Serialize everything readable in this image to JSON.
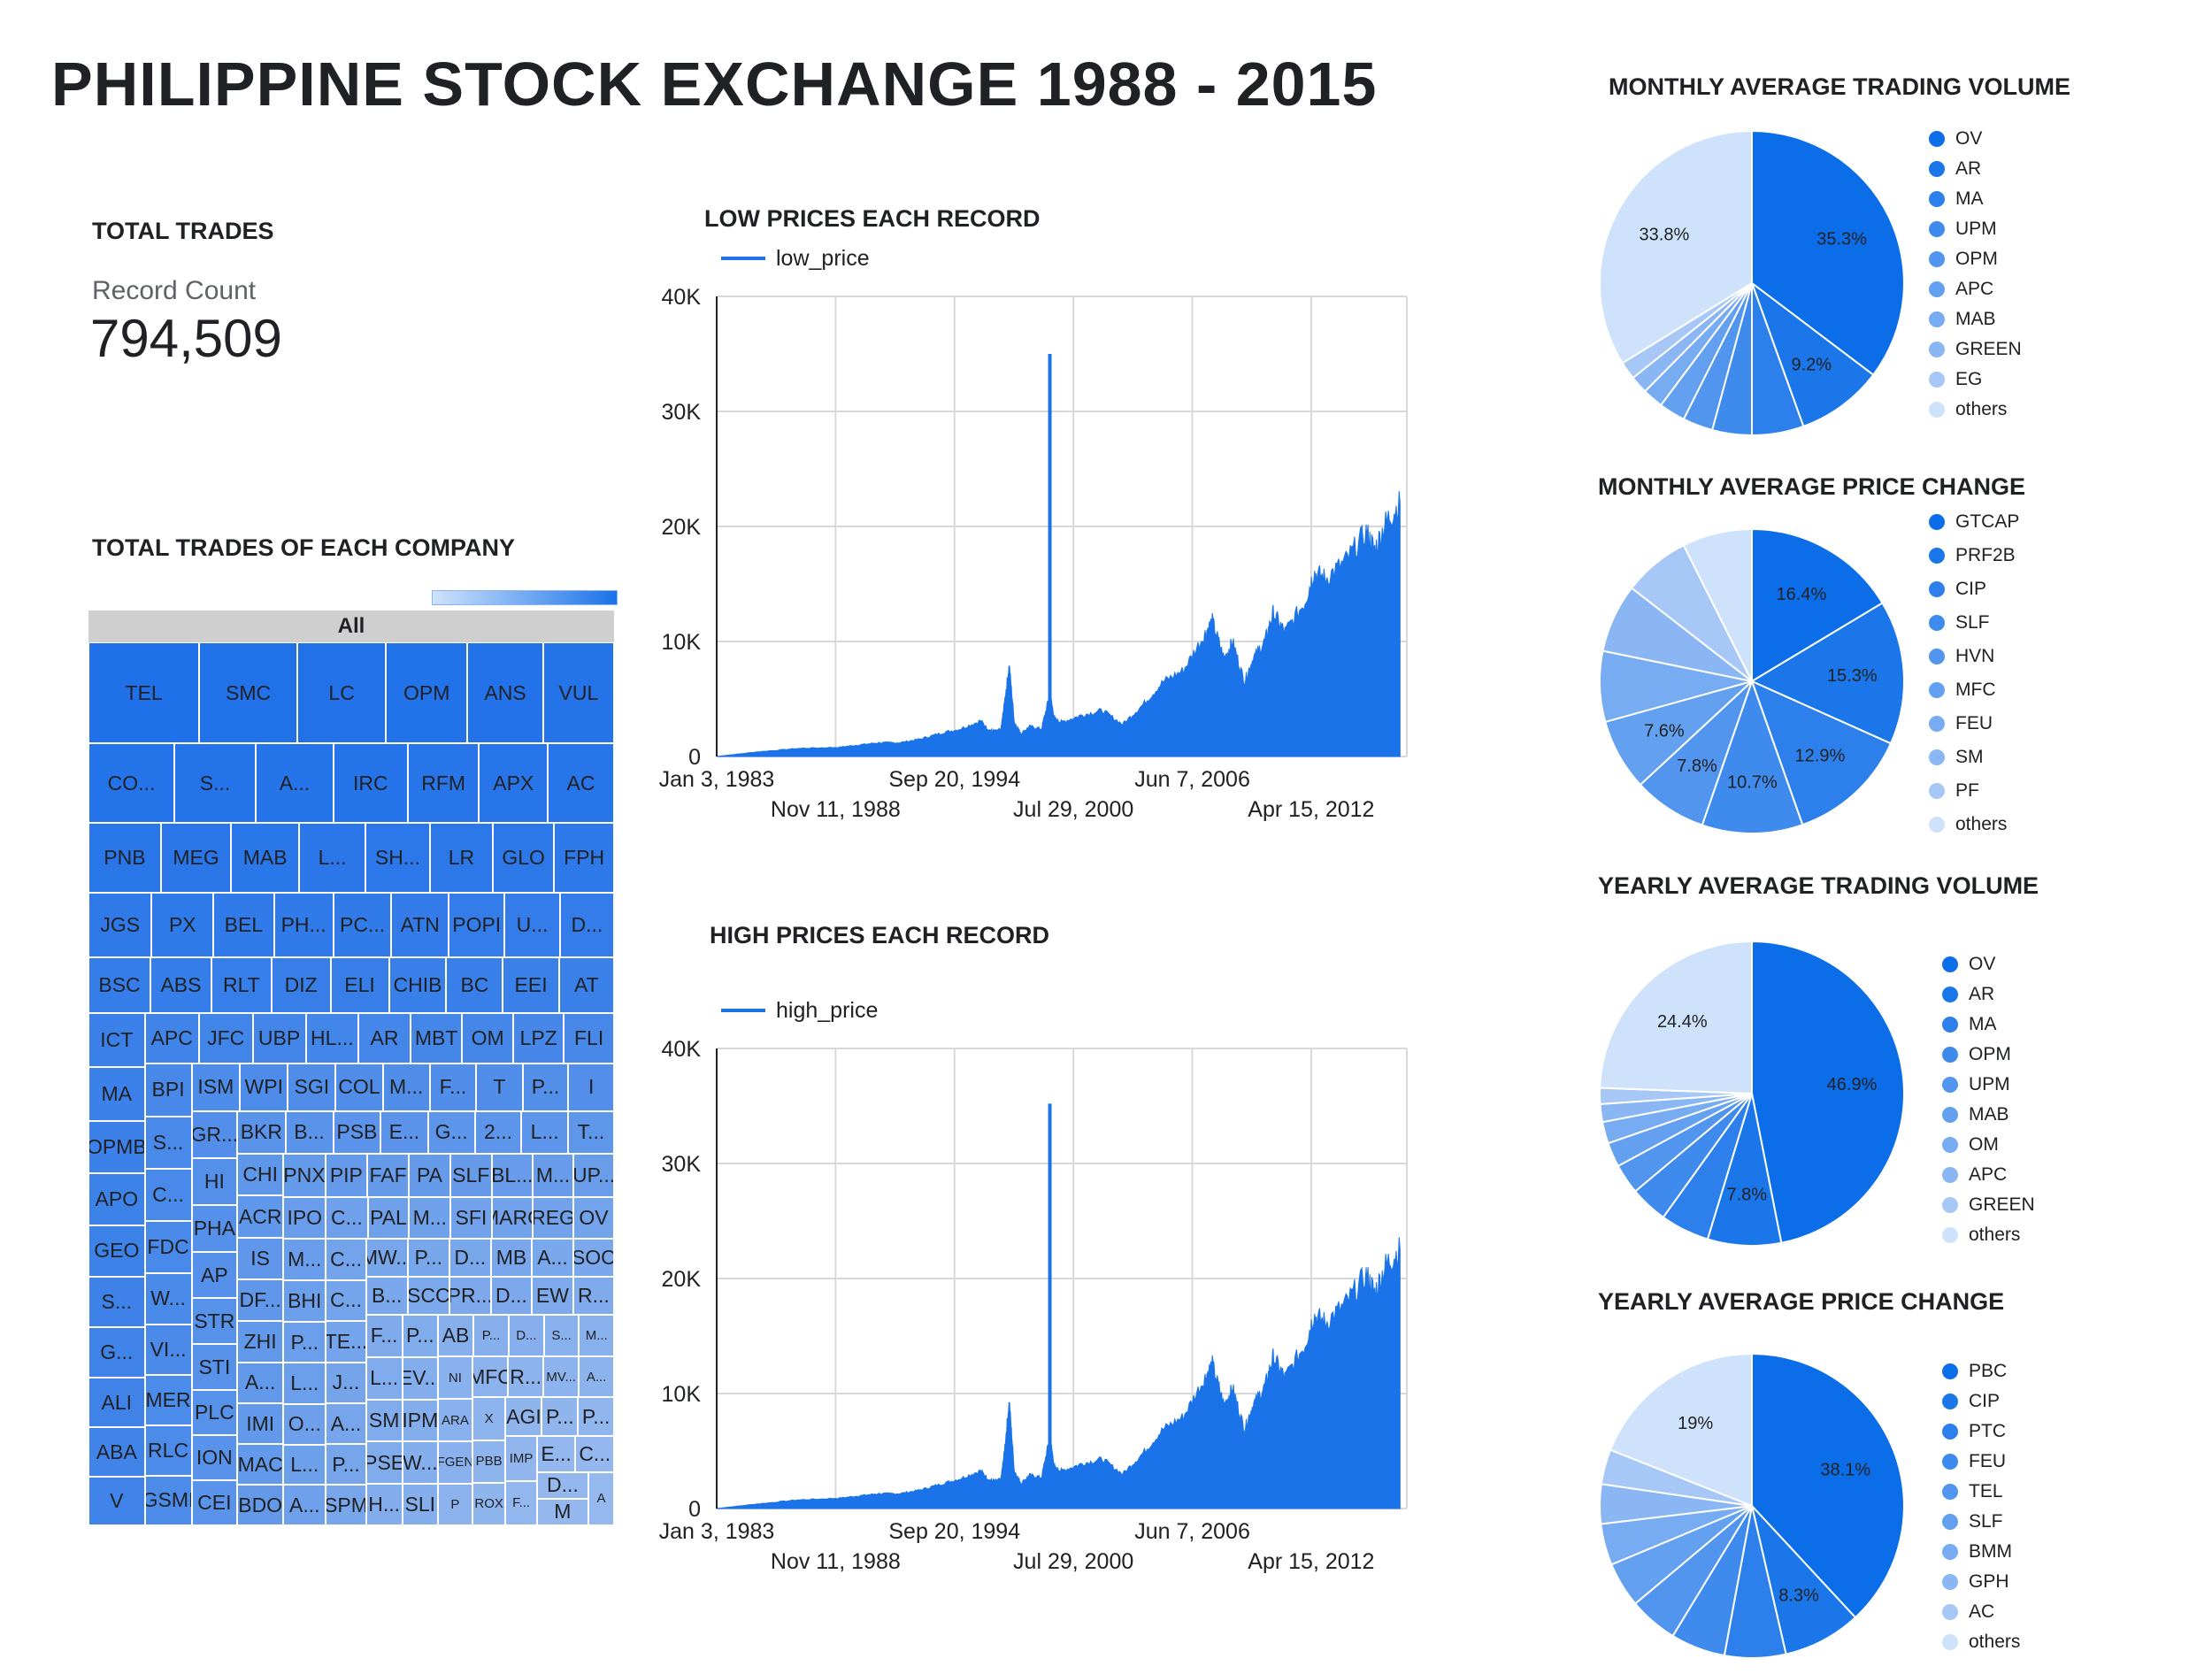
{
  "page": {
    "title": "PHILIPPINE STOCK EXCHANGE 1988 - 2015"
  },
  "kpi": {
    "heading": "TOTAL TRADES",
    "label": "Record Count",
    "value": "794,509"
  },
  "treemap": {
    "heading": "TOTAL TRADES OF EACH COMPANY",
    "root_label": "All",
    "cells": [
      "TEL",
      "SMC",
      "LC",
      "OPM",
      "ANS",
      "VUL",
      "CO...",
      "S...",
      "A...",
      "IRC",
      "RFM",
      "APX",
      "AC",
      "PNB",
      "MEG",
      "MAB",
      "L...",
      "SH...",
      "LR",
      "GLO",
      "FPH",
      "JGS",
      "PX",
      "BEL",
      "PH...",
      "PC...",
      "ATN",
      "POPI",
      "U...",
      "D...",
      "BSC",
      "ABS",
      "RLT",
      "DIZ",
      "ELI",
      "CHIB",
      "BC",
      "EEI",
      "AT",
      "ICT",
      "MA",
      "OPMB",
      "APO",
      "GEO",
      "S...",
      "G...",
      "ALI",
      "ABA",
      "V",
      "APC",
      "JFC",
      "UBP",
      "HL...",
      "AR",
      "MBT",
      "OM",
      "LPZ",
      "FLI",
      "BPI",
      "S...",
      "C...",
      "FDC",
      "W...",
      "VI...",
      "MER",
      "RLC",
      "GSMI",
      "ISM",
      "WPI",
      "SGI",
      "COL",
      "M...",
      "F...",
      "T",
      "P...",
      "I",
      "GR...",
      "HI",
      "PHA",
      "AP",
      "STR",
      "STI",
      "PLC",
      "ION",
      "CEI",
      "BKR",
      "B...",
      "PSB",
      "E...",
      "G...",
      "2...",
      "L...",
      "T...",
      "CHI",
      "ACR",
      "IS",
      "DF...",
      "ZHI",
      "A...",
      "IMI",
      "MAC",
      "BDO",
      "PNX",
      "PIP",
      "FAF",
      "PA",
      "SLF",
      "BL...",
      "M...",
      "UP...",
      "IPO",
      "M...",
      "BHI",
      "P...",
      "L...",
      "O...",
      "L...",
      "A...",
      "C...",
      "PAL",
      "M...",
      "SFI",
      "MARC",
      "REG",
      "OV",
      "C...",
      "C...",
      "TE...",
      "J...",
      "A...",
      "P...",
      "SPM",
      "MW...",
      "P...",
      "D...",
      "MB",
      "A...",
      "SOC",
      "B...",
      "SCC",
      "PR...",
      "D...",
      "EW",
      "R...",
      "F...",
      "L...",
      "SM",
      "PSE",
      "H...",
      "P...",
      "EV...",
      "IPM",
      "W...",
      "SLI",
      "AB",
      "P...",
      "D...",
      "S...",
      "M...",
      "NI",
      "ARA",
      "FGEN",
      "P",
      "MFC",
      "R...",
      "MV...",
      "A...",
      "X",
      "PBB",
      "ROX",
      "AGI",
      "P...",
      "P...",
      "IMP",
      "F...",
      "E...",
      "C...",
      "D...",
      "M",
      "A"
    ]
  },
  "low_chart": {
    "heading": "LOW PRICES EACH RECORD",
    "legend": "low_price"
  },
  "high_chart": {
    "heading": "HIGH PRICES EACH RECORD",
    "legend": "high_price"
  },
  "pies": [
    {
      "heading": "MONTHLY AVERAGE TRADING VOLUME"
    },
    {
      "heading": "MONTHLY AVERAGE PRICE CHANGE"
    },
    {
      "heading": "YEARLY AVERAGE TRADING VOLUME"
    },
    {
      "heading": "YEARLY AVERAGE PRICE CHANGE"
    }
  ],
  "colors": {
    "primary": "#1a73e8",
    "pie_scale": [
      "#0b6ee8",
      "#1a76e9",
      "#2d80eb",
      "#3f8aed",
      "#5195ee",
      "#64a0f0",
      "#77abf2",
      "#8ab6f4",
      "#a7c8f6",
      "#cfe2fb"
    ]
  },
  "chart_data": [
    {
      "type": "area",
      "title": "LOW PRICES EACH RECORD",
      "series": [
        {
          "name": "low_price"
        }
      ],
      "x_tick_labels": [
        "Jan 3, 1983",
        "Nov 11, 1988",
        "Sep 20, 1994",
        "Jul 29, 2000",
        "Jun 7, 2006",
        "Apr 15, 2012"
      ],
      "y_tick_labels": [
        "0",
        "10K",
        "20K",
        "30K",
        "40K"
      ],
      "ylim": [
        0,
        40000
      ],
      "xlim": [
        "1983-01-03",
        "2017-01-01"
      ],
      "grid": true,
      "legend_position": "top-left",
      "x": [
        "1983-01",
        "1985-01",
        "1987-01",
        "1989-01",
        "1990-01",
        "1991-01",
        "1992-01",
        "1993-01",
        "1994-01",
        "1995-01",
        "1996-01",
        "1996-06",
        "1996-10",
        "1997-01",
        "1997-03",
        "1997-06",
        "1997-09",
        "1998-01",
        "1998-06",
        "1999-01",
        "1999-06",
        "1999-09",
        "2000-01",
        "2001-01",
        "2002-01",
        "2003-01",
        "2004-01",
        "2005-01",
        "2006-01",
        "2007-01",
        "2007-06",
        "2008-01",
        "2008-06",
        "2009-01",
        "2009-06",
        "2010-01",
        "2010-06",
        "2011-01",
        "2012-01",
        "2012-06",
        "2013-01",
        "2014-01",
        "2015-01",
        "2015-06",
        "2016-01",
        "2016-09"
      ],
      "values": [
        0,
        400,
        700,
        800,
        1000,
        1200,
        1200,
        1500,
        2000,
        2400,
        3100,
        2300,
        2200,
        2300,
        4500,
        8000,
        3000,
        2000,
        2600,
        2400,
        5400,
        3200,
        3000,
        3600,
        4000,
        2800,
        4500,
        6500,
        7500,
        10500,
        11800,
        8500,
        10000,
        6500,
        8500,
        10000,
        12500,
        10800,
        13500,
        16000,
        15500,
        17000,
        19500,
        18000,
        20500,
        22000
      ],
      "spike": {
        "x": "1999-06",
        "value": 35000
      }
    },
    {
      "type": "area",
      "title": "HIGH PRICES EACH RECORD",
      "series": [
        {
          "name": "high_price"
        }
      ],
      "x_tick_labels": [
        "Jan 3, 1983",
        "Nov 11, 1988",
        "Sep 20, 1994",
        "Jul 29, 2000",
        "Jun 7, 2006",
        "Apr 15, 2012"
      ],
      "y_tick_labels": [
        "0",
        "10K",
        "20K",
        "30K",
        "40K"
      ],
      "ylim": [
        0,
        40000
      ],
      "xlim": [
        "1983-01-03",
        "2017-01-01"
      ],
      "grid": true,
      "legend_position": "top-left",
      "x": [
        "1983-01",
        "1985-01",
        "1987-01",
        "1989-01",
        "1990-01",
        "1991-01",
        "1992-01",
        "1993-01",
        "1994-01",
        "1995-01",
        "1996-01",
        "1996-06",
        "1996-10",
        "1997-01",
        "1997-03",
        "1997-06",
        "1997-09",
        "1998-01",
        "1998-06",
        "1999-01",
        "1999-06",
        "1999-09",
        "2000-01",
        "2001-01",
        "2002-01",
        "2003-01",
        "2004-01",
        "2005-01",
        "2006-01",
        "2007-01",
        "2007-06",
        "2008-01",
        "2008-06",
        "2009-01",
        "2009-06",
        "2010-01",
        "2010-06",
        "2011-01",
        "2012-01",
        "2012-06",
        "2013-01",
        "2014-01",
        "2015-01",
        "2015-06",
        "2016-01",
        "2016-09"
      ],
      "values": [
        0,
        400,
        750,
        900,
        1100,
        1300,
        1300,
        1600,
        2100,
        2600,
        3300,
        2500,
        2400,
        2500,
        4800,
        9400,
        3300,
        2200,
        2900,
        2700,
        6200,
        3500,
        3300,
        3900,
        4300,
        3000,
        4800,
        6900,
        8000,
        11200,
        12600,
        9000,
        10500,
        6900,
        9000,
        10600,
        13200,
        11400,
        14300,
        16800,
        16200,
        17800,
        20300,
        18800,
        21300,
        22500
      ],
      "spike": {
        "x": "1999-06",
        "value": 35200
      }
    },
    {
      "type": "pie",
      "title": "MONTHLY AVERAGE TRADING VOLUME",
      "categories": [
        "OV",
        "AR",
        "MA",
        "UPM",
        "OPM",
        "APC",
        "MAB",
        "GREEN",
        "EG",
        "others"
      ],
      "values": [
        35.3,
        9.2,
        5.5,
        4.2,
        3.2,
        2.8,
        2.2,
        1.9,
        1.9,
        33.8
      ],
      "data_labels": [
        "35.3%",
        "9.2%",
        "",
        "",
        "",
        "",
        "",
        "",
        "",
        "33.8%"
      ]
    },
    {
      "type": "pie",
      "title": "MONTHLY AVERAGE PRICE CHANGE",
      "categories": [
        "GTCAP",
        "PRF2B",
        "CIP",
        "SLF",
        "HVN",
        "MFC",
        "FEU",
        "SM",
        "PF",
        "others"
      ],
      "values": [
        16.4,
        15.3,
        12.9,
        10.7,
        7.8,
        7.6,
        7.5,
        7.3,
        7.1,
        7.4
      ],
      "data_labels": [
        "16.4%",
        "15.3%",
        "12.9%",
        "10.7%",
        "7.8%",
        "7.6%",
        "",
        "",
        "",
        ""
      ]
    },
    {
      "type": "pie",
      "title": "YEARLY AVERAGE TRADING VOLUME",
      "categories": [
        "OV",
        "AR",
        "MA",
        "OPM",
        "UPM",
        "MAB",
        "OM",
        "APC",
        "GREEN",
        "others"
      ],
      "values": [
        46.9,
        7.8,
        5.2,
        4.0,
        3.2,
        2.6,
        2.3,
        1.9,
        1.7,
        24.4
      ],
      "data_labels": [
        "46.9%",
        "7.8%",
        "",
        "",
        "",
        "",
        "",
        "",
        "",
        "24.4%"
      ]
    },
    {
      "type": "pie",
      "title": "YEARLY AVERAGE PRICE CHANGE",
      "categories": [
        "PBC",
        "CIP",
        "PTC",
        "FEU",
        "TEL",
        "SLF",
        "BMM",
        "GPH",
        "AC",
        "others"
      ],
      "values": [
        38.1,
        8.3,
        6.5,
        5.8,
        5.2,
        4.8,
        4.4,
        4.2,
        3.7,
        19.0
      ],
      "data_labels": [
        "38.1%",
        "8.3%",
        "",
        "",
        "",
        "",
        "",
        "",
        "",
        "19%"
      ]
    }
  ]
}
